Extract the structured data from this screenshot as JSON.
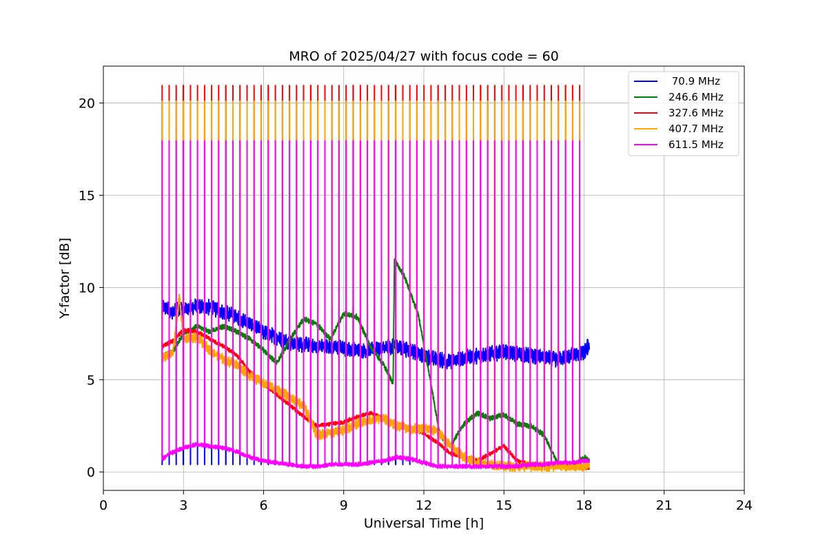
{
  "chart_data": {
    "type": "line",
    "title": "MRO of 2025/04/27 with focus code = 60",
    "xlabel": "Universal Time [h]",
    "ylabel": "Y-factor [dB]",
    "xlim": [
      0,
      24
    ],
    "ylim": [
      -1,
      22
    ],
    "xticks": [
      0,
      3,
      6,
      9,
      12,
      15,
      18,
      21,
      24
    ],
    "yticks": [
      0,
      5,
      10,
      15,
      20
    ],
    "grid": true,
    "legend_position": "top-right",
    "spike_interval_h": 0.265,
    "spike_start_h": 2.2,
    "spike_end_h": 18.0,
    "series": [
      {
        "name": " 70.9 MHz",
        "color": "#0000ff",
        "spike_top": 9.0,
        "spike_base": 0.4,
        "spike_end_h": 11.7,
        "noise": 0.45,
        "x": [
          2.2,
          2.5,
          3.0,
          3.5,
          4.0,
          4.5,
          5.0,
          5.5,
          6.0,
          6.5,
          7.0,
          7.5,
          8.0,
          8.5,
          9.0,
          9.5,
          10.0,
          10.5,
          11.0,
          11.5,
          12.0,
          12.5,
          13.0,
          13.5,
          14.0,
          14.5,
          15.0,
          15.5,
          16.0,
          16.5,
          17.0,
          17.5,
          18.0,
          18.2
        ],
        "y": [
          9.0,
          8.7,
          8.8,
          9.0,
          8.9,
          8.7,
          8.4,
          8.0,
          7.6,
          7.3,
          7.0,
          6.9,
          6.8,
          6.8,
          6.7,
          6.6,
          6.6,
          6.7,
          6.8,
          6.6,
          6.3,
          6.1,
          6.0,
          6.2,
          6.3,
          6.4,
          6.5,
          6.4,
          6.3,
          6.2,
          6.1,
          6.3,
          6.5,
          6.9
        ]
      },
      {
        "name": "246.6 MHz",
        "color": "#008000",
        "spike_top": 0,
        "spike_base": 0,
        "spike_end_h": 0,
        "noise": 0.15,
        "x": [
          2.2,
          2.6,
          3.0,
          3.5,
          4.0,
          4.5,
          5.0,
          5.5,
          6.0,
          6.5,
          7.0,
          7.5,
          8.0,
          8.5,
          9.0,
          9.5,
          10.0,
          10.5,
          10.85,
          10.9,
          11.3,
          11.8,
          12.3,
          12.6,
          13.0,
          13.5,
          14.0,
          14.5,
          15.0,
          15.5,
          16.0,
          16.5,
          17.0,
          17.5,
          18.0,
          18.2
        ],
        "y": [
          6.3,
          6.5,
          7.5,
          7.9,
          7.6,
          7.9,
          7.6,
          7.2,
          6.6,
          5.9,
          7.2,
          8.3,
          8.0,
          7.2,
          8.6,
          8.4,
          6.8,
          5.8,
          4.8,
          11.5,
          10.5,
          8.5,
          4.5,
          2.0,
          1.4,
          2.6,
          3.2,
          2.9,
          3.1,
          2.6,
          2.5,
          2.0,
          0.5,
          0.2,
          0.8,
          0.6
        ]
      },
      {
        "name": "327.6 MHz",
        "color": "#ff0000",
        "spike_top": 20.95,
        "spike_base": 0,
        "spike_end_h": 18.0,
        "noise": 0.12,
        "x": [
          2.2,
          2.6,
          3.0,
          3.5,
          4.0,
          4.5,
          5.0,
          5.5,
          6.0,
          6.5,
          7.0,
          7.5,
          8.0,
          8.5,
          9.0,
          9.5,
          10.0,
          10.5,
          11.0,
          11.5,
          12.0,
          12.5,
          13.0,
          13.5,
          14.0,
          14.5,
          15.0,
          15.5,
          16.0,
          16.5,
          17.0,
          17.5,
          18.0,
          18.2
        ],
        "y": [
          6.8,
          7.1,
          7.7,
          7.6,
          7.2,
          6.8,
          6.3,
          5.4,
          4.8,
          4.2,
          3.6,
          3.0,
          2.5,
          2.6,
          2.7,
          3.0,
          3.2,
          2.9,
          2.5,
          2.4,
          2.1,
          1.6,
          1.0,
          0.8,
          0.6,
          1.0,
          1.4,
          0.6,
          0.4,
          0.4,
          0.5,
          0.3,
          0.2,
          0.2
        ]
      },
      {
        "name": "407.7 MHz",
        "color": "#ffa500",
        "spike_top": 20.1,
        "spike_base": 0,
        "spike_end_h": 18.0,
        "noise": 0.3,
        "x": [
          2.2,
          2.6,
          2.85,
          3.0,
          3.5,
          4.0,
          4.5,
          5.0,
          5.5,
          6.0,
          6.5,
          7.0,
          7.5,
          8.0,
          8.5,
          9.0,
          9.5,
          10.0,
          10.5,
          11.0,
          11.5,
          12.0,
          12.5,
          13.0,
          13.5,
          14.0,
          14.5,
          15.0,
          15.5,
          16.0,
          16.5,
          17.0,
          17.5,
          18.0,
          18.2
        ],
        "y": [
          6.2,
          6.4,
          9.5,
          7.2,
          7.3,
          6.6,
          6.1,
          5.8,
          5.2,
          4.8,
          4.5,
          4.0,
          3.6,
          2.0,
          2.1,
          2.3,
          2.6,
          2.8,
          2.9,
          2.5,
          2.3,
          2.4,
          2.2,
          1.4,
          0.8,
          0.5,
          0.4,
          0.3,
          0.3,
          0.3,
          0.3,
          0.3,
          0.3,
          0.3,
          0.4
        ]
      },
      {
        "name": "611.5 MHz",
        "color": "#ff00ff",
        "spike_top": 17.95,
        "spike_base": 0,
        "spike_end_h": 18.0,
        "noise": 0.12,
        "x": [
          2.2,
          2.5,
          3.0,
          3.5,
          4.0,
          4.5,
          5.0,
          5.5,
          6.0,
          6.5,
          7.0,
          7.5,
          8.0,
          8.5,
          9.0,
          9.5,
          10.0,
          10.5,
          11.0,
          11.5,
          12.0,
          12.5,
          13.0,
          13.5,
          14.0,
          14.5,
          15.0,
          15.5,
          16.0,
          16.5,
          17.0,
          17.5,
          18.0,
          18.2
        ],
        "y": [
          0.7,
          1.0,
          1.3,
          1.5,
          1.4,
          1.3,
          1.1,
          0.8,
          0.6,
          0.5,
          0.4,
          0.3,
          0.3,
          0.4,
          0.4,
          0.4,
          0.5,
          0.6,
          0.8,
          0.7,
          0.5,
          0.3,
          0.3,
          0.3,
          0.3,
          0.3,
          0.3,
          0.3,
          0.4,
          0.4,
          0.5,
          0.5,
          0.6,
          0.6
        ]
      }
    ]
  }
}
